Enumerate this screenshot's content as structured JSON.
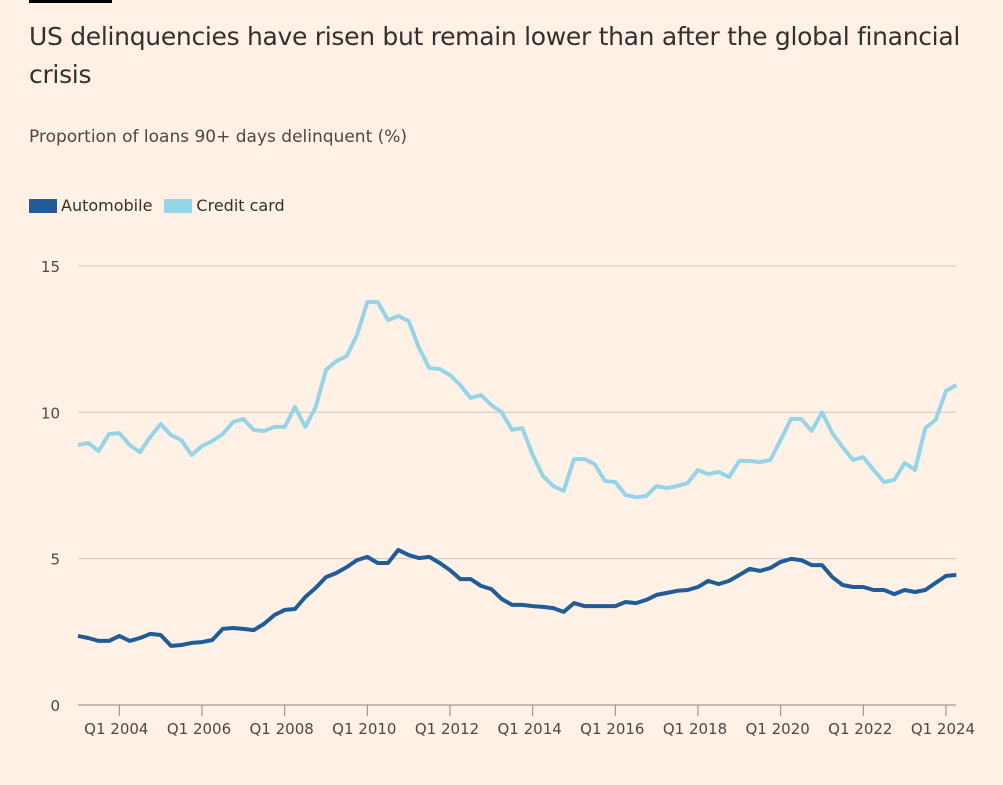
{
  "title": "US delinquencies have risen but remain lower than after the global financial crisis",
  "subtitle": "Proportion of loans 90+ days delinquent (%)",
  "colors": {
    "background": "#FFF1E5",
    "automobile": "#1F5C99",
    "credit_card": "#96D4E8",
    "grid": "#CEC6BE"
  },
  "chart_data": {
    "type": "line",
    "x_start": "2003 Q1",
    "x_end": "2024 Q2",
    "x_frequency": "quarterly",
    "ylim": [
      0,
      15
    ],
    "yticks": [
      0,
      5,
      10,
      15
    ],
    "xticks": [
      "Q1 2004",
      "Q1 2006",
      "Q1 2008",
      "Q1 2010",
      "Q1 2012",
      "Q1 2014",
      "Q1 2016",
      "Q1 2018",
      "Q1 2020",
      "Q1 2022",
      "Q1 2024"
    ],
    "grid": true,
    "legend_placement": "top-left",
    "series": [
      {
        "name": "Automobile",
        "color": "#1F5C99",
        "values": [
          2.36,
          2.29,
          2.19,
          2.19,
          2.36,
          2.19,
          2.29,
          2.43,
          2.39,
          2.02,
          2.05,
          2.12,
          2.15,
          2.22,
          2.6,
          2.63,
          2.6,
          2.56,
          2.77,
          3.07,
          3.25,
          3.28,
          3.69,
          4.0,
          4.37,
          4.51,
          4.71,
          4.95,
          5.06,
          4.85,
          4.85,
          5.3,
          5.12,
          5.02,
          5.06,
          4.85,
          4.61,
          4.3,
          4.3,
          4.07,
          3.96,
          3.62,
          3.42,
          3.42,
          3.38,
          3.35,
          3.31,
          3.18,
          3.48,
          3.38,
          3.38,
          3.38,
          3.38,
          3.52,
          3.48,
          3.59,
          3.76,
          3.83,
          3.9,
          3.93,
          4.03,
          4.24,
          4.13,
          4.24,
          4.44,
          4.65,
          4.58,
          4.68,
          4.89,
          4.99,
          4.95,
          4.78,
          4.78,
          4.37,
          4.1,
          4.03,
          4.03,
          3.93,
          3.93,
          3.79,
          3.93,
          3.86,
          3.93,
          4.17,
          4.41,
          4.44
        ]
      },
      {
        "name": "Credit card",
        "color": "#96D4E8",
        "values": [
          8.88,
          8.95,
          8.68,
          9.26,
          9.29,
          8.88,
          8.64,
          9.16,
          9.6,
          9.22,
          9.05,
          8.54,
          8.85,
          9.02,
          9.26,
          9.67,
          9.77,
          9.4,
          9.36,
          9.5,
          9.5,
          10.18,
          9.5,
          10.18,
          11.45,
          11.75,
          11.92,
          12.64,
          13.77,
          13.77,
          13.15,
          13.29,
          13.12,
          12.2,
          11.51,
          11.48,
          11.27,
          10.93,
          10.49,
          10.59,
          10.25,
          10.0,
          9.4,
          9.46,
          8.54,
          7.82,
          7.48,
          7.31,
          8.4,
          8.4,
          8.23,
          7.65,
          7.62,
          7.17,
          7.1,
          7.14,
          7.48,
          7.41,
          7.48,
          7.58,
          8.03,
          7.89,
          7.96,
          7.79,
          8.34,
          8.34,
          8.3,
          8.37,
          9.05,
          9.77,
          9.77,
          9.36,
          10.0,
          9.29,
          8.81,
          8.37,
          8.47,
          8.03,
          7.62,
          7.69,
          8.27,
          8.03,
          9.46,
          9.74,
          10.73,
          10.93
        ]
      }
    ]
  }
}
